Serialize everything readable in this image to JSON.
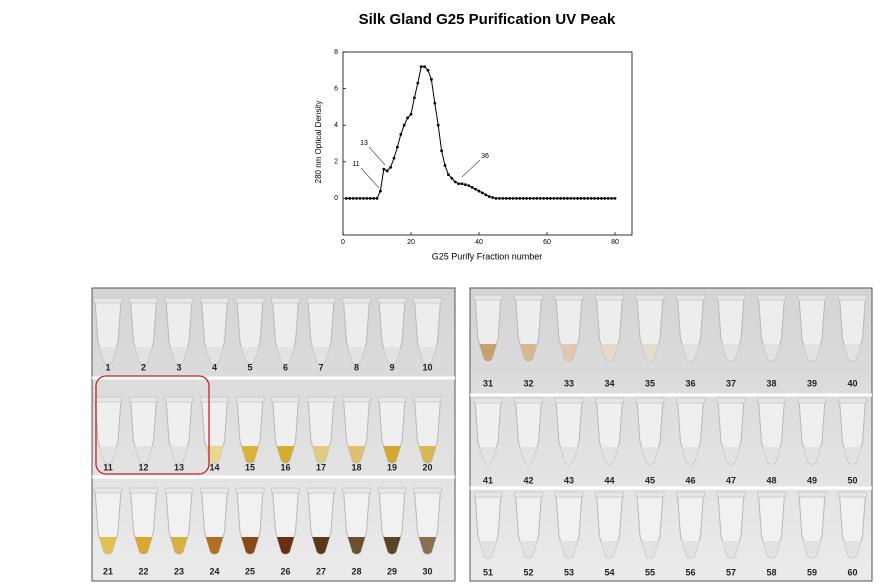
{
  "chart_data": {
    "type": "line",
    "title": "Silk Gland G25 Purification UV Peak",
    "x_label": "G25 Purify Fraction number",
    "y_label": "280 nm Optical Density",
    "annotations": [
      "11",
      "13",
      "36"
    ],
    "xlim": [
      0,
      85
    ],
    "ylim": [
      -2,
      8
    ],
    "xticks": [
      0,
      20,
      40,
      60,
      80
    ],
    "yticks": [
      0,
      2,
      4,
      6,
      8
    ],
    "series": [
      {
        "color": "#000000",
        "x": [
          1,
          2,
          3,
          4,
          5,
          6,
          7,
          8,
          9,
          10,
          11,
          12,
          13,
          14,
          15,
          16,
          17,
          18,
          19,
          20,
          21,
          22,
          23,
          24,
          25,
          26,
          27,
          28,
          29,
          30,
          31,
          32,
          33,
          34,
          35,
          36,
          37,
          38,
          39,
          40,
          41,
          42,
          43,
          44,
          45,
          46,
          47,
          48,
          49,
          50,
          51,
          52,
          53,
          54,
          55,
          56,
          57,
          58,
          59,
          60,
          61,
          62,
          63,
          64,
          65,
          66,
          67,
          68,
          69,
          70,
          71,
          72,
          73,
          74,
          75,
          76,
          77,
          78,
          79,
          80
        ],
        "values": [
          0,
          0,
          0,
          0,
          0,
          0,
          0,
          0,
          0,
          0,
          0.4,
          1.6,
          1.5,
          1.7,
          2.2,
          2.8,
          3.5,
          4.0,
          4.4,
          4.6,
          5.5,
          6.3,
          7.2,
          7.2,
          7.0,
          6.5,
          5.2,
          4.0,
          2.6,
          1.8,
          1.3,
          1.1,
          0.9,
          0.8,
          0.8,
          0.75,
          0.7,
          0.6,
          0.5,
          0.4,
          0.3,
          0.2,
          0.1,
          0.05,
          0,
          0,
          0,
          0,
          0,
          0,
          0,
          0,
          0,
          0,
          0,
          0,
          0,
          0,
          0,
          0,
          0,
          0,
          0,
          0,
          0,
          0,
          0,
          0,
          0,
          0,
          0,
          0,
          0,
          0,
          0,
          0,
          0,
          0,
          0,
          0
        ]
      }
    ]
  },
  "photos": {
    "tubes": [
      {
        "label": "1",
        "liquid": "#e2e2e2"
      },
      {
        "label": "2",
        "liquid": "#e2e2e2"
      },
      {
        "label": "3",
        "liquid": "#e2e2e2"
      },
      {
        "label": "4",
        "liquid": "#e2e2e2"
      },
      {
        "label": "5",
        "liquid": "#e2e2e2"
      },
      {
        "label": "6",
        "liquid": "#e2e2e2"
      },
      {
        "label": "7",
        "liquid": "#e2e2e2"
      },
      {
        "label": "8",
        "liquid": "#e2e2e2"
      },
      {
        "label": "9",
        "liquid": "#e2e2e2"
      },
      {
        "label": "10",
        "liquid": "#e2e2e2"
      },
      {
        "label": "11",
        "liquid": "#e2e2e2"
      },
      {
        "label": "12",
        "liquid": "#e2e2e2"
      },
      {
        "label": "13",
        "liquid": "#e2e2e2"
      },
      {
        "label": "14",
        "liquid": "#e8d890"
      },
      {
        "label": "15",
        "liquid": "#d9b43a"
      },
      {
        "label": "16",
        "liquid": "#d6ac30"
      },
      {
        "label": "17",
        "liquid": "#e0cc80"
      },
      {
        "label": "18",
        "liquid": "#e0c070"
      },
      {
        "label": "19",
        "liquid": "#d4a830"
      },
      {
        "label": "20",
        "liquid": "#d8b850"
      },
      {
        "label": "21",
        "liquid": "#e0c050"
      },
      {
        "label": "22",
        "liquid": "#d8a830"
      },
      {
        "label": "23",
        "liquid": "#d8b040"
      },
      {
        "label": "24",
        "liquid": "#b07020"
      },
      {
        "label": "25",
        "liquid": "#8a4a18"
      },
      {
        "label": "26",
        "liquid": "#6a3010"
      },
      {
        "label": "27",
        "liquid": "#5a3818"
      },
      {
        "label": "28",
        "liquid": "#6a5030"
      },
      {
        "label": "29",
        "liquid": "#5a4428"
      },
      {
        "label": "30",
        "liquid": "#8a7050"
      },
      {
        "label": "31",
        "liquid": "#c8a070"
      },
      {
        "label": "32",
        "liquid": "#d8b890"
      },
      {
        "label": "33",
        "liquid": "#e0c8b0"
      },
      {
        "label": "34",
        "liquid": "#e8d8c8"
      },
      {
        "label": "35",
        "liquid": "#e4dcd0"
      },
      {
        "label": "36",
        "liquid": "#e2e2e2"
      },
      {
        "label": "37",
        "liquid": "#e2e2e2"
      },
      {
        "label": "38",
        "liquid": "#e2e2e2"
      },
      {
        "label": "39",
        "liquid": "#e2e2e2"
      },
      {
        "label": "40",
        "liquid": "#e2e2e2"
      },
      {
        "label": "41",
        "liquid": "#e2e2e2"
      },
      {
        "label": "42",
        "liquid": "#e2e2e2"
      },
      {
        "label": "43",
        "liquid": "#e2e2e2"
      },
      {
        "label": "44",
        "liquid": "#e2e2e2"
      },
      {
        "label": "45",
        "liquid": "#e2e2e2"
      },
      {
        "label": "46",
        "liquid": "#e2e2e2"
      },
      {
        "label": "47",
        "liquid": "#e2e2e2"
      },
      {
        "label": "48",
        "liquid": "#e2e2e2"
      },
      {
        "label": "49",
        "liquid": "#e2e2e2"
      },
      {
        "label": "50",
        "liquid": "#e2e2e2"
      },
      {
        "label": "51",
        "liquid": "#e2e2e2"
      },
      {
        "label": "52",
        "liquid": "#e2e2e2"
      },
      {
        "label": "53",
        "liquid": "#e2e2e2"
      },
      {
        "label": "54",
        "liquid": "#e2e2e2"
      },
      {
        "label": "55",
        "liquid": "#e2e2e2"
      },
      {
        "label": "56",
        "liquid": "#e2e2e2"
      },
      {
        "label": "57",
        "liquid": "#e2e2e2"
      },
      {
        "label": "58",
        "liquid": "#e2e2e2"
      },
      {
        "label": "59",
        "liquid": "#e2e2e2"
      },
      {
        "label": "60",
        "liquid": "#e2e2e2"
      }
    ]
  }
}
